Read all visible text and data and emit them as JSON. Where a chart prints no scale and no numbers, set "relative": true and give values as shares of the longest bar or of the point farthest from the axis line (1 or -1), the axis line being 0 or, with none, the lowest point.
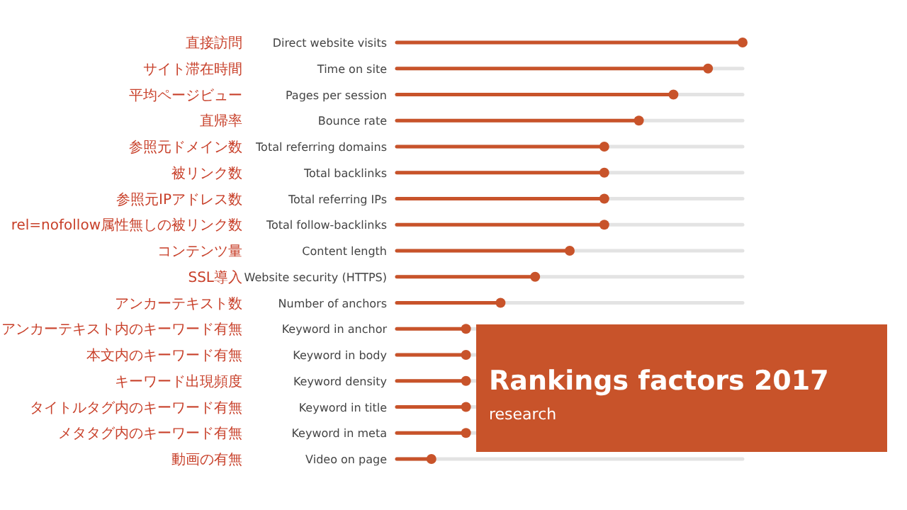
{
  "chart_data": {
    "type": "lollipop",
    "orientation": "horizontal",
    "relative": true,
    "title": "Rankings factors 2017",
    "subtitle": "research",
    "categories": [
      "Direct website visits",
      "Time on site",
      "Pages per session",
      "Bounce rate",
      "Total referring domains",
      "Total backlinks",
      "Total referring IPs",
      "Total follow-backlinks",
      "Content length",
      "Website security (HTTPS)",
      "Number of anchors",
      "Keyword in anchor",
      "Keyword in body",
      "Keyword density",
      "Keyword in title",
      "Keyword in meta",
      "Video on page"
    ],
    "y2_categories": [
      "直接訪問",
      "サイト滞在時間",
      "平均ページビュー",
      "直帰率",
      "参照元ドメイン数",
      "被リンク数",
      "参照元IPアドレス数",
      "rel=nofollow属性無しの被リンク数",
      "コンテンツ量",
      "SSL導入",
      "アンカーテキスト数",
      "アンカーテキスト内のキーワード有無",
      "本文内のキーワード有無",
      "キーワード出現頻度",
      "タイトルタグ内のキーワード有無",
      "メタタグ内のキーワード有無",
      "動画の有無"
    ],
    "values": [
      1,
      0.9,
      0.8,
      0.7,
      0.6,
      0.6,
      0.6,
      0.6,
      0.5,
      0.4,
      0.3,
      0.2,
      0.2,
      0.2,
      0.2,
      0.2,
      0.1
    ],
    "color": "#c8532a",
    "marker": "circle",
    "grid": true
  }
}
